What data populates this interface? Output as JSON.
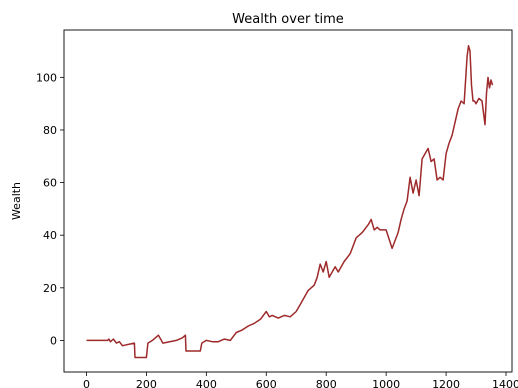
{
  "chart_data": {
    "type": "line",
    "title": "Wealth over time",
    "xlabel": "",
    "ylabel": "Wealth",
    "xlim": [
      -75,
      1420
    ],
    "ylim": [
      -12,
      118
    ],
    "grid": false,
    "legend": "none",
    "x_ticks": [
      0,
      200,
      400,
      600,
      800,
      1000,
      1200,
      1400
    ],
    "y_ticks": [
      0,
      20,
      40,
      60,
      80,
      100
    ],
    "series": [
      {
        "color": "#9e2a2b",
        "x": [
          0,
          70,
          75,
          80,
          90,
          100,
          110,
          120,
          140,
          160,
          162,
          200,
          205,
          220,
          240,
          250,
          255,
          300,
          320,
          330,
          332,
          380,
          385,
          400,
          420,
          440,
          460,
          480,
          500,
          520,
          540,
          560,
          580,
          600,
          610,
          620,
          640,
          660,
          680,
          700,
          720,
          740,
          760,
          770,
          780,
          790,
          800,
          810,
          820,
          830,
          840,
          860,
          880,
          900,
          920,
          940,
          950,
          960,
          970,
          980,
          1000,
          1020,
          1030,
          1040,
          1050,
          1060,
          1070,
          1080,
          1090,
          1100,
          1110,
          1120,
          1130,
          1140,
          1150,
          1160,
          1170,
          1180,
          1190,
          1200,
          1210,
          1220,
          1230,
          1240,
          1250,
          1260,
          1270,
          1275,
          1280,
          1285,
          1290,
          1295,
          1300,
          1305,
          1310,
          1320,
          1330,
          1335,
          1340,
          1345,
          1350,
          1355
        ],
        "y": [
          0,
          0,
          0.5,
          -0.5,
          0.5,
          -1,
          -0.5,
          -2,
          -1.5,
          -1,
          -6.5,
          -6.5,
          -1,
          0,
          2,
          0,
          -1,
          0,
          1,
          2,
          -4,
          -4,
          -1,
          0,
          -0.5,
          -0.5,
          0.5,
          0,
          3,
          4,
          5.5,
          6.5,
          8,
          11,
          9,
          9.5,
          8.5,
          9.5,
          9,
          11,
          15,
          19,
          21,
          24,
          29,
          26,
          30,
          24,
          26,
          28,
          26,
          30,
          33,
          39,
          41,
          44,
          46,
          42,
          43,
          42,
          42,
          35,
          38,
          41,
          46,
          50,
          53,
          62,
          56,
          61,
          55,
          69,
          71,
          73,
          68,
          69,
          61,
          62,
          61,
          71,
          75,
          78,
          83,
          88,
          91,
          90,
          108,
          112,
          110,
          97,
          91,
          91,
          90,
          91,
          92,
          91,
          82,
          94,
          100,
          96,
          99,
          97
        ]
      }
    ]
  }
}
